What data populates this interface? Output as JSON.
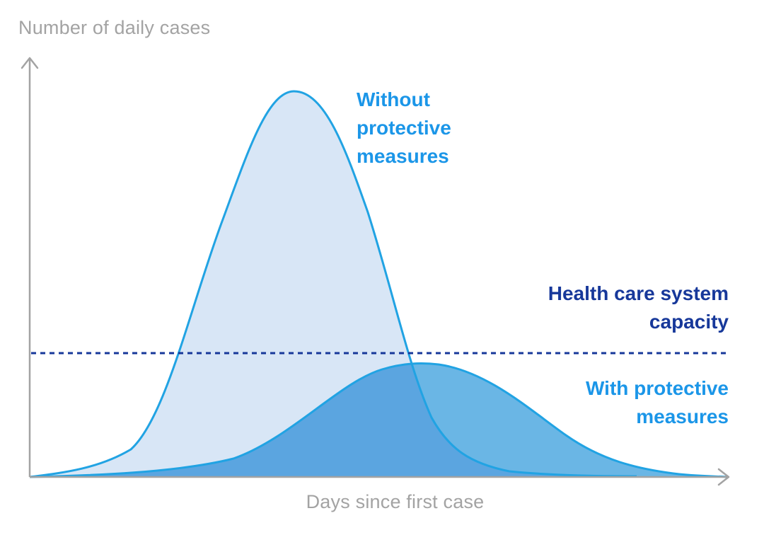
{
  "axes": {
    "y_title": "Number of daily cases",
    "x_title": "Days since first case"
  },
  "labels": {
    "without_measures": [
      "Without",
      "protective",
      "measures"
    ],
    "capacity": [
      "Health care system",
      "capacity"
    ],
    "with_measures": [
      "With protective",
      "measures"
    ]
  },
  "colors": {
    "axis": "#a3a3a3",
    "without_fill": "#d8e6f6",
    "without_line": "#21a3e3",
    "with_fill": "#6ab6e5",
    "overlap_fill": "#5ba5e0",
    "with_line": "#21a3e3",
    "capacity_line": "#17389a",
    "label_light": "#1b96e8",
    "label_dark": "#17389a"
  }
}
